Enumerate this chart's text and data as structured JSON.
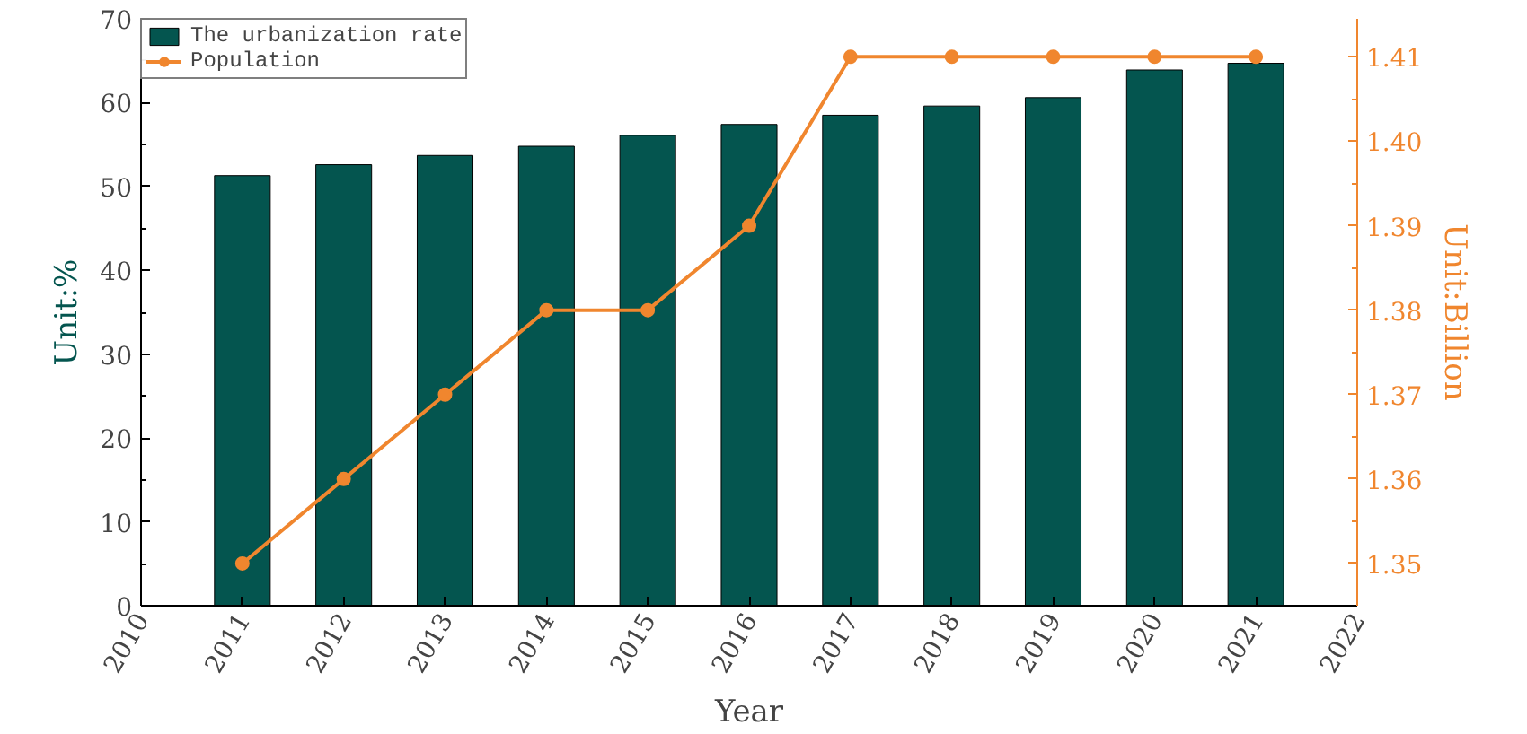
{
  "chart_data": {
    "type": "bar",
    "xlabel": "Year",
    "ylabel": "Unit:%",
    "y2label": "Unit:Billion",
    "x": [
      2011,
      2012,
      2013,
      2014,
      2015,
      2016,
      2017,
      2018,
      2019,
      2020,
      2021
    ],
    "xlim": [
      2010,
      2022
    ],
    "xticks": [
      2010,
      2011,
      2012,
      2013,
      2014,
      2015,
      2016,
      2017,
      2018,
      2019,
      2020,
      2021,
      2022
    ],
    "ylim": [
      0,
      70
    ],
    "yticks": [
      0,
      10,
      20,
      30,
      40,
      50,
      60,
      70
    ],
    "y2lim": [
      1.345,
      1.4145
    ],
    "y2ticks": [
      {
        "value": 1.35,
        "label": "1.35"
      },
      {
        "value": 1.36,
        "label": "1.36"
      },
      {
        "value": 1.37,
        "label": "1.37"
      },
      {
        "value": 1.38,
        "label": "1.38"
      },
      {
        "value": 1.39,
        "label": "1.39"
      },
      {
        "value": 1.4,
        "label": "1.40"
      },
      {
        "value": 1.41,
        "label": "1.41"
      }
    ],
    "series": [
      {
        "name": "The urbanization rate",
        "color": "#04554f",
        "values": [
          51.3,
          52.6,
          53.7,
          54.8,
          56.1,
          57.4,
          58.5,
          59.6,
          60.6,
          63.9,
          64.7
        ]
      },
      {
        "name": "Population",
        "type": "line",
        "axis": "y2",
        "color": "#f0862e",
        "marker": "circle",
        "values": [
          1.35,
          1.36,
          1.37,
          1.38,
          1.38,
          1.39,
          1.41,
          1.41,
          1.41,
          1.41,
          1.41
        ]
      }
    ],
    "legend": "top left",
    "grid": false
  }
}
